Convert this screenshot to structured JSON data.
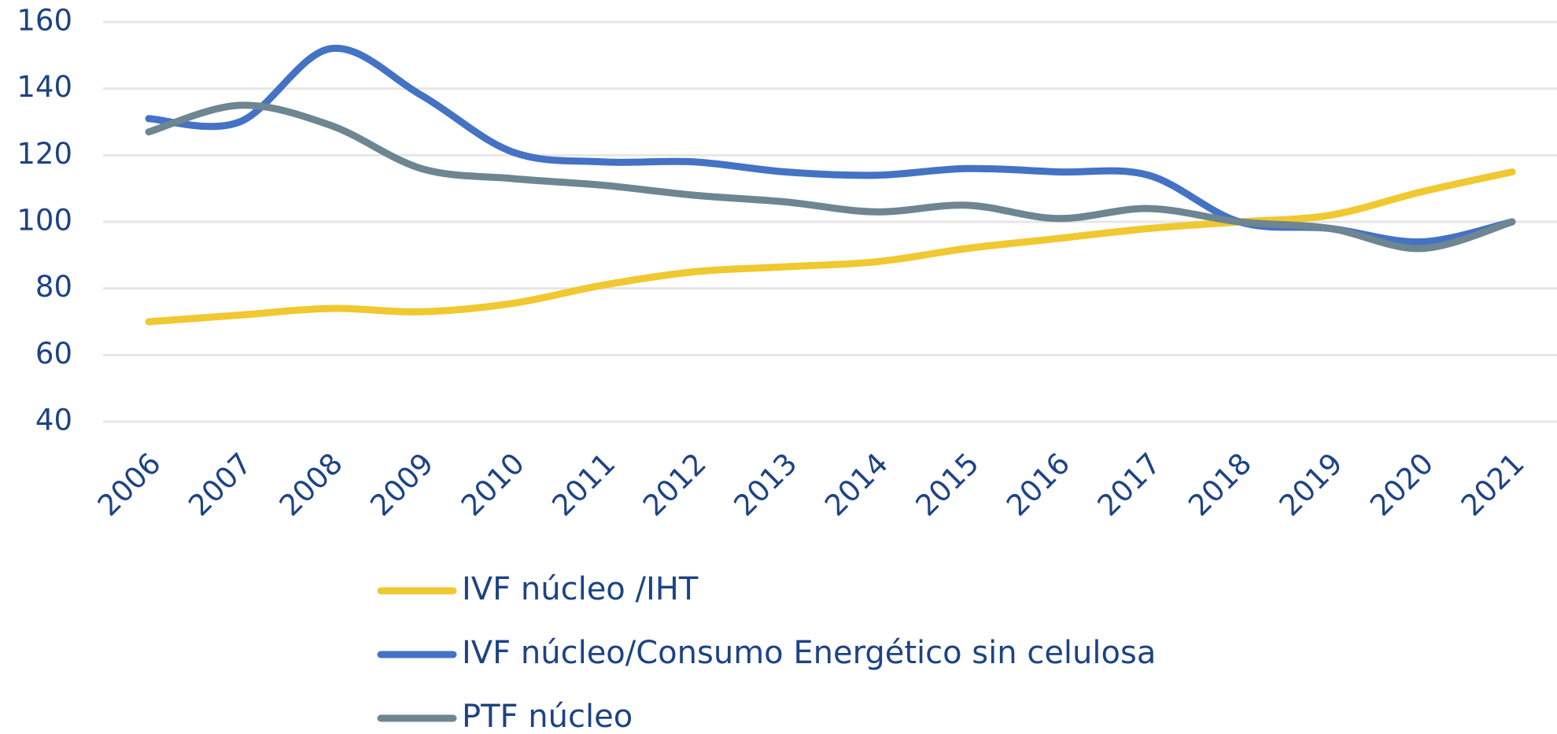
{
  "chart_data": {
    "type": "line",
    "categories": [
      "2006",
      "2007",
      "2008",
      "2009",
      "2010",
      "2011",
      "2012",
      "2013",
      "2014",
      "2015",
      "2016",
      "2017",
      "2018",
      "2019",
      "2020",
      "2021"
    ],
    "series": [
      {
        "name": "IVF núcleo /IHT",
        "color": "#f0c830",
        "values": [
          70,
          72,
          74,
          73,
          75.5,
          81,
          85,
          86.5,
          88,
          92,
          95,
          98,
          100,
          102,
          109,
          115
        ]
      },
      {
        "name": "IVF núcleo/Consumo Energético sin celulosa",
        "color": "#4472c4",
        "values": [
          131,
          130,
          152,
          138,
          121,
          118,
          118,
          115,
          114,
          116,
          115,
          114,
          100,
          98,
          94,
          100
        ]
      },
      {
        "name": "PTF núcleo",
        "color": "#6e8592",
        "values": [
          127,
          135,
          129,
          116,
          113,
          111,
          108,
          106,
          103,
          105,
          101,
          104,
          100,
          98,
          92,
          100
        ]
      }
    ],
    "ylim": [
      40,
      160
    ],
    "yticks": [
      40,
      60,
      80,
      100,
      120,
      140,
      160
    ],
    "grid": true,
    "legend": "bottom"
  }
}
